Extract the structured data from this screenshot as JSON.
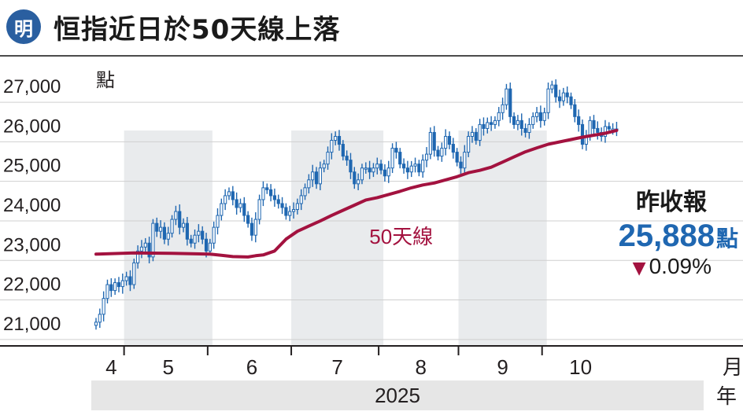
{
  "header": {
    "logo_text": "明",
    "title": "恒指近日於50天線上落"
  },
  "colors": {
    "brand_blue": "#2a5fa0",
    "candle_blue": "#1f67b1",
    "ma_red": "#a3123f",
    "band_gray": "#e9ebed"
  },
  "axis": {
    "y_unit": "點",
    "x_unit": "月",
    "year": "2025",
    "year_unit": "年"
  },
  "summary": {
    "caption": "昨收報",
    "value": "25,888",
    "value_unit": "點",
    "change_icon": "down-triangle-icon",
    "change": "0.09%"
  },
  "chart_data": {
    "type": "line",
    "title": "恒指近日於50天線上落",
    "ylabel": "點",
    "xlabel": "月",
    "ylim": [
      20400,
      27400
    ],
    "xlim": [
      0,
      157
    ],
    "yticks": [
      21000,
      22000,
      23000,
      24000,
      25000,
      26000,
      27000
    ],
    "ytick_labels": [
      "21,000",
      "22,000",
      "23,000",
      "24,000",
      "25,000",
      "26,000",
      "27,000"
    ],
    "months": [
      {
        "label": "4",
        "start": 0,
        "end": 8
      },
      {
        "label": "5",
        "start": 8,
        "end": 30
      },
      {
        "label": "6",
        "start": 30,
        "end": 52
      },
      {
        "label": "7",
        "start": 52,
        "end": 75
      },
      {
        "label": "8",
        "start": 75,
        "end": 96
      },
      {
        "label": "9",
        "start": 96,
        "end": 118
      },
      {
        "label": "10",
        "start": 118,
        "end": 137
      }
    ],
    "shaded_months": [
      "5",
      "7",
      "9"
    ],
    "series": [
      {
        "name": "恒指",
        "style": "candles",
        "x": [
          0,
          1,
          2,
          3,
          4,
          5,
          6,
          7,
          8,
          9,
          10,
          11,
          12,
          13,
          14,
          15,
          16,
          17,
          18,
          19,
          20,
          21,
          22,
          23,
          24,
          25,
          26,
          27,
          28,
          29,
          30,
          31,
          32,
          33,
          34,
          35,
          36,
          37,
          38,
          39,
          40,
          41,
          42,
          43,
          44,
          45,
          46,
          47,
          48,
          49,
          50,
          51,
          52,
          53,
          54,
          55,
          56,
          57,
          58,
          59,
          60,
          61,
          62,
          63,
          64,
          65,
          66,
          67,
          68,
          69,
          70,
          71,
          72,
          73,
          74,
          75,
          76,
          77,
          78,
          79,
          80,
          81,
          82,
          83,
          84,
          85,
          86,
          87,
          88,
          89,
          90,
          91,
          92,
          93,
          94,
          95,
          96,
          97,
          98,
          99,
          100,
          101,
          102,
          103,
          104,
          105,
          106,
          107,
          108,
          109,
          110,
          111,
          112,
          113,
          114,
          115,
          116,
          117,
          118,
          119,
          120,
          121,
          122,
          123,
          124,
          125,
          126,
          127,
          128,
          129,
          130,
          131,
          132,
          133,
          134,
          135,
          136,
          137
        ],
        "close": [
          21000,
          21200,
          21600,
          21950,
          21800,
          22000,
          21900,
          22050,
          22150,
          21950,
          22500,
          22800,
          22900,
          23000,
          22650,
          23500,
          23300,
          23400,
          23100,
          23250,
          23600,
          23800,
          23400,
          23500,
          23100,
          23000,
          23200,
          23300,
          23100,
          22800,
          23000,
          23400,
          23700,
          24000,
          24200,
          24300,
          24100,
          23900,
          24000,
          23700,
          23500,
          23200,
          23600,
          24100,
          24400,
          24350,
          24200,
          24100,
          24000,
          23900,
          23700,
          23800,
          23850,
          24000,
          24200,
          24400,
          24600,
          24800,
          24500,
          24900,
          25000,
          25300,
          25600,
          25700,
          25500,
          25200,
          25100,
          24800,
          24500,
          24600,
          24900,
          24900,
          24800,
          24900,
          25000,
          24850,
          24700,
          24900,
          25400,
          25300,
          25000,
          24900,
          24800,
          24950,
          25000,
          24800,
          25100,
          25250,
          25800,
          25350,
          25200,
          25400,
          25700,
          25500,
          25300,
          25050,
          24900,
          25300,
          25700,
          25800,
          25600,
          26000,
          25900,
          26050,
          26000,
          26100,
          26300,
          26500,
          26900,
          26200,
          26000,
          26100,
          25900,
          25800,
          26000,
          26200,
          26300,
          26100,
          26300,
          26900,
          27000,
          26700,
          26600,
          26800,
          26700,
          26500,
          26200,
          26000,
          25500,
          25700,
          26100,
          25900,
          25800,
          25700,
          25950,
          25888,
          25888,
          25888
        ],
        "low_high_spread": 180
      },
      {
        "name": "50天線",
        "style": "line",
        "x": [
          0,
          10,
          20,
          30,
          33,
          36,
          40,
          42,
          44,
          47,
          50,
          53,
          56,
          59,
          62,
          65,
          68,
          71,
          74,
          77,
          80,
          83,
          86,
          89,
          92,
          95,
          98,
          101,
          104,
          107,
          110,
          113,
          116,
          119,
          122,
          125,
          128,
          131,
          134,
          137
        ],
        "values": [
          22720,
          22750,
          22740,
          22720,
          22690,
          22660,
          22650,
          22680,
          22700,
          22800,
          23100,
          23300,
          23430,
          23560,
          23700,
          23830,
          23960,
          24090,
          24150,
          24230,
          24310,
          24400,
          24470,
          24520,
          24600,
          24680,
          24780,
          24840,
          24920,
          25050,
          25180,
          25310,
          25410,
          25500,
          25560,
          25620,
          25680,
          25730,
          25780,
          25850
        ]
      }
    ],
    "annotations": [
      {
        "text": "50天線",
        "x": 74,
        "y": 23100
      }
    ],
    "grid": true
  }
}
